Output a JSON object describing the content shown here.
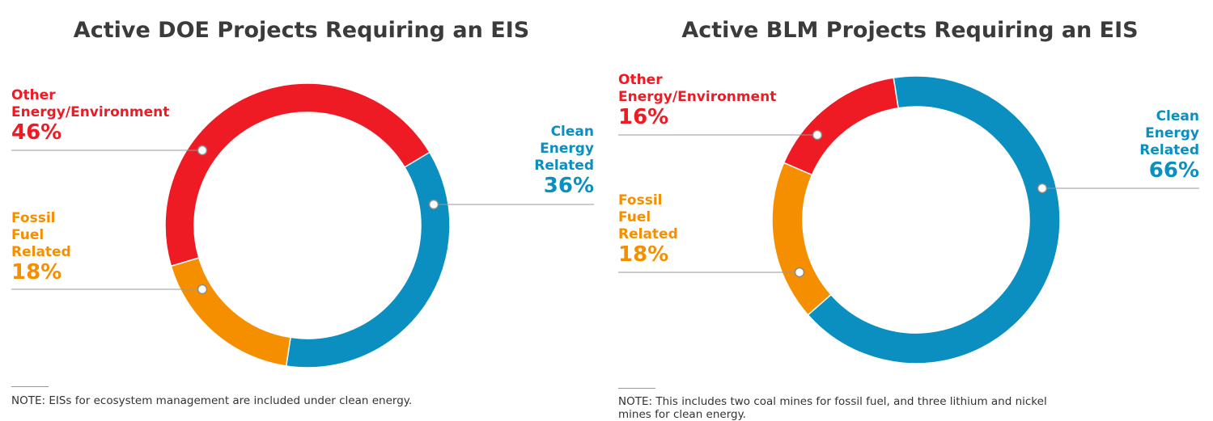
{
  "chart_data": [
    {
      "type": "pie",
      "title": "Active DOE Projects Requiring an EIS",
      "slices": [
        {
          "label": "Clean Energy Related",
          "label_lines": [
            "Clean",
            "Energy",
            "Related"
          ],
          "value": 36,
          "display": "36%",
          "color": "#0b8fc0"
        },
        {
          "label": "Fossil Fuel Related",
          "label_lines": [
            "Fossil",
            "Fuel",
            "Related"
          ],
          "value": 18,
          "display": "18%",
          "color": "#f58f00"
        },
        {
          "label": "Other Energy/Environment",
          "label_lines": [
            "Other",
            "Energy/Environment"
          ],
          "value": 46,
          "display": "46%",
          "color": "#ee1b24"
        }
      ],
      "note": "NOTE: EISs for ecosystem management are included under clean energy."
    },
    {
      "type": "pie",
      "title": "Active BLM Projects Requiring an EIS",
      "slices": [
        {
          "label": "Clean Energy Related",
          "label_lines": [
            "Clean",
            "Energy",
            "Related"
          ],
          "value": 66,
          "display": "66%",
          "color": "#0b8fc0"
        },
        {
          "label": "Fossil Fuel Related",
          "label_lines": [
            "Fossil",
            "Fuel",
            "Related"
          ],
          "value": 18,
          "display": "18%",
          "color": "#f58f00"
        },
        {
          "label": "Other Energy/Environment",
          "label_lines": [
            "Other",
            "Energy/Environment"
          ],
          "value": 16,
          "display": "16%",
          "color": "#ee1b24"
        }
      ],
      "note": "NOTE: This includes two coal mines for fossil fuel, and three lithium and nickel mines for clean energy."
    }
  ]
}
